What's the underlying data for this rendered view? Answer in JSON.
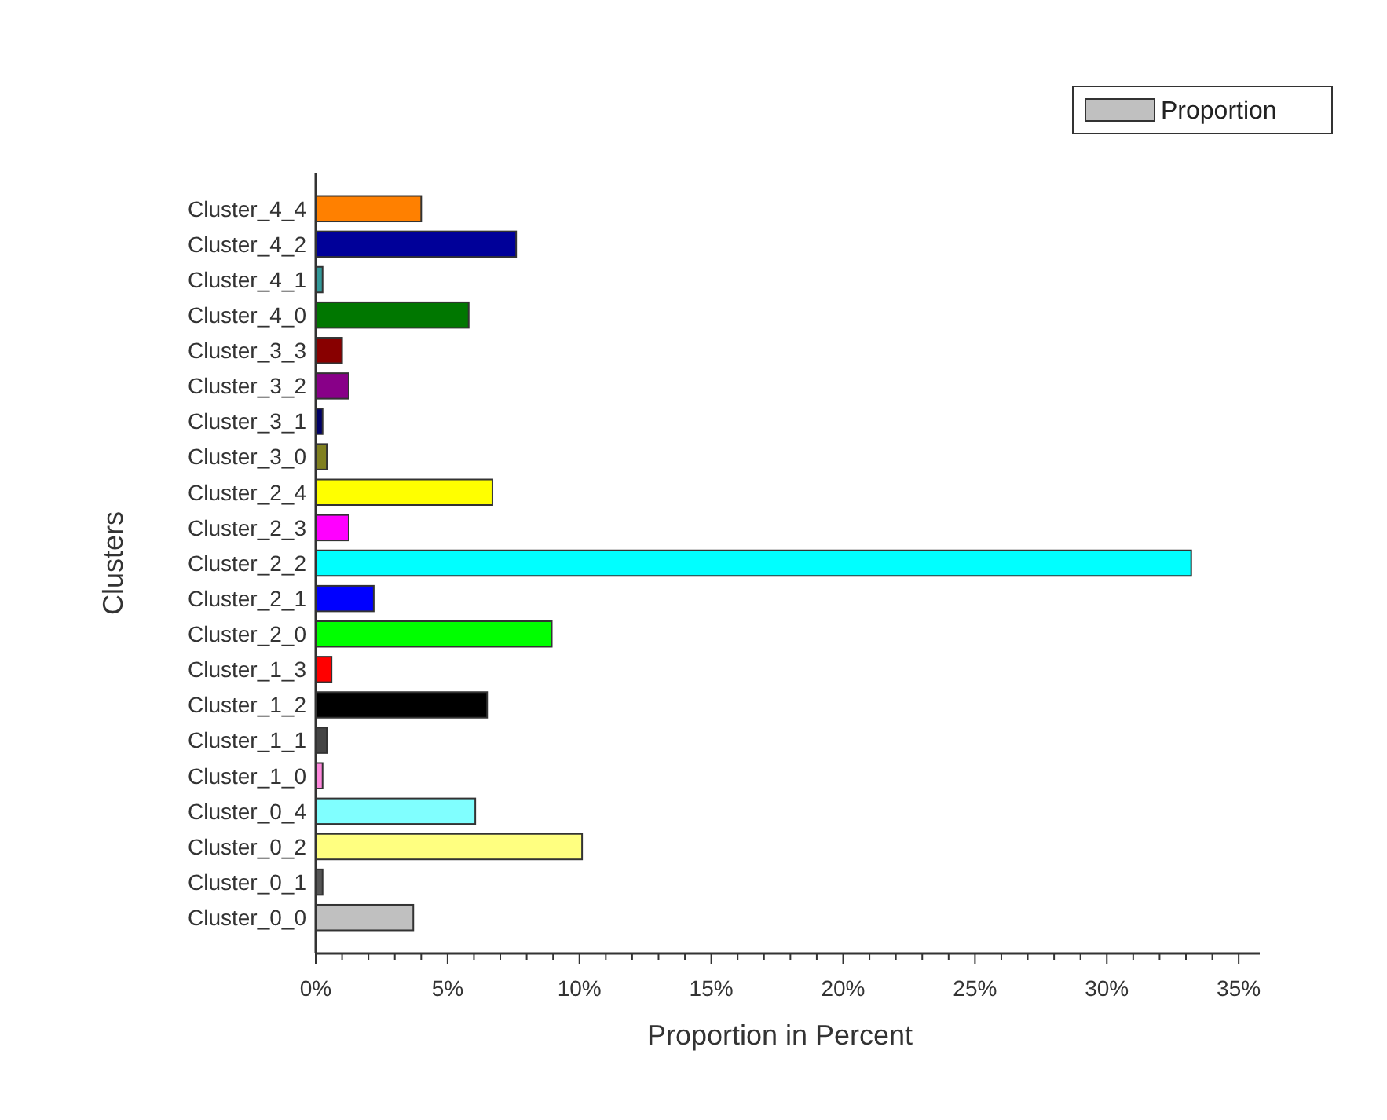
{
  "chart_data": {
    "type": "bar",
    "orientation": "horizontal",
    "xlabel": "Proportion in Percent",
    "ylabel": "Clusters",
    "legend": "top right",
    "categories": [
      "Cluster_4_4",
      "Cluster_4_2",
      "Cluster_4_1",
      "Cluster_4_0",
      "Cluster_3_3",
      "Cluster_3_2",
      "Cluster_3_1",
      "Cluster_3_0",
      "Cluster_2_4",
      "Cluster_2_3",
      "Cluster_2_2",
      "Cluster_2_1",
      "Cluster_2_0",
      "Cluster_1_3",
      "Cluster_1_2",
      "Cluster_1_1",
      "Cluster_1_0",
      "Cluster_0_4",
      "Cluster_0_2",
      "Cluster_0_1",
      "Cluster_0_0"
    ],
    "series": [
      {
        "name": "Proportion",
        "color": "#c0c0c0",
        "values": [
          4.0,
          7.6,
          0.26,
          5.8,
          1.0,
          1.25,
          0.26,
          0.42,
          6.7,
          1.25,
          33.2,
          2.2,
          8.95,
          0.6,
          6.5,
          0.42,
          0.26,
          6.05,
          10.1,
          0.26,
          3.7
        ],
        "colors": [
          "#ff8000",
          "#000099",
          "#339999",
          "#007700",
          "#880000",
          "#880088",
          "#000066",
          "#808020",
          "#ffff00",
          "#ff00ff",
          "#00ffff",
          "#0000ff",
          "#00ff00",
          "#ff0000",
          "#000000",
          "#444444",
          "#ff88dd",
          "#80ffff",
          "#ffff80",
          "#555555",
          "#c0c0c0"
        ]
      }
    ],
    "xlim": [
      0,
      35.8
    ],
    "xticks": [
      {
        "value": 0,
        "label": "0%"
      },
      {
        "value": 1,
        "label": null
      },
      {
        "value": 2,
        "label": null
      },
      {
        "value": 3,
        "label": null
      },
      {
        "value": 4,
        "label": null
      },
      {
        "value": 5,
        "label": "5%"
      },
      {
        "value": 6,
        "label": null
      },
      {
        "value": 7,
        "label": null
      },
      {
        "value": 8,
        "label": null
      },
      {
        "value": 9,
        "label": null
      },
      {
        "value": 10,
        "label": "10%"
      },
      {
        "value": 11,
        "label": null
      },
      {
        "value": 12,
        "label": null
      },
      {
        "value": 13,
        "label": null
      },
      {
        "value": 14,
        "label": null
      },
      {
        "value": 15,
        "label": "15%"
      },
      {
        "value": 16,
        "label": null
      },
      {
        "value": 17,
        "label": null
      },
      {
        "value": 18,
        "label": null
      },
      {
        "value": 19,
        "label": null
      },
      {
        "value": 20,
        "label": "20%"
      },
      {
        "value": 21,
        "label": null
      },
      {
        "value": 22,
        "label": null
      },
      {
        "value": 23,
        "label": null
      },
      {
        "value": 24,
        "label": null
      },
      {
        "value": 25,
        "label": "25%"
      },
      {
        "value": 26,
        "label": null
      },
      {
        "value": 27,
        "label": null
      },
      {
        "value": 28,
        "label": null
      },
      {
        "value": 29,
        "label": null
      },
      {
        "value": 30,
        "label": "30%"
      },
      {
        "value": 31,
        "label": null
      },
      {
        "value": 32,
        "label": null
      },
      {
        "value": 33,
        "label": null
      },
      {
        "value": 34,
        "label": null
      },
      {
        "value": 35,
        "label": "35%"
      }
    ]
  }
}
